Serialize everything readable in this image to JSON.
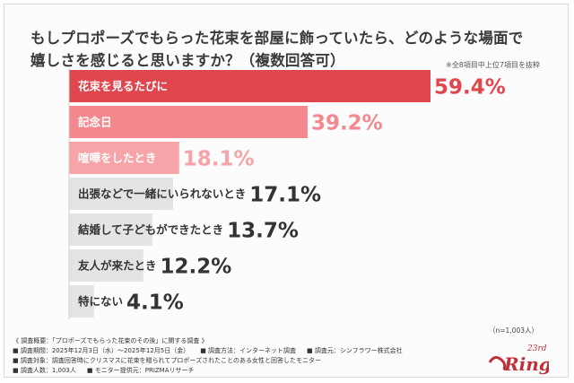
{
  "title_line1": "もしプロポーズでもらった花束を部屋に飾っていたら、どのような場面で",
  "title_line2": "嬉しさを感じると思いますか？（複数回答可）",
  "note": "※全8項目中上位7項目を抜粋",
  "n_count": "（n=1,003人）",
  "colors": {
    "top": "#e0464d",
    "second": "#f3888e",
    "third": "#f7a4a8",
    "rest": "#e4e4e4",
    "label_light": "#ffffff",
    "label_dark": "#333333"
  },
  "chart_data": {
    "type": "bar",
    "orientation": "horizontal",
    "categories": [
      "花束を見るたびに",
      "記念日",
      "喧嘩をしたとき",
      "出張などで一緒にいられないとき",
      "結婚して子どもができたとき",
      "友人が来たとき",
      "特にない"
    ],
    "values": [
      59.4,
      39.2,
      18.1,
      17.1,
      13.7,
      12.2,
      4.1
    ],
    "value_labels": [
      "59.4%",
      "39.2%",
      "18.1%",
      "17.1%",
      "13.7%",
      "12.2%",
      "4.1%"
    ],
    "unit": "%",
    "xlim": [
      0,
      70
    ],
    "grid": false,
    "legend": "none"
  },
  "footer": {
    "line1": "《 調査概要：「プロポーズでもらった花束のその後」に関する調査 》",
    "line2a": "■ 調査期間：2025年12月3日（水）～2025年12月5日（金）",
    "line2b": "■ 調査方法：インターネット調査",
    "line2c": "■ 調査元：シンフラワー株式会社",
    "line3": "■ 調査対象：調査回答時にクリスマスに花束を贈られてプロポーズされたことのある女性と回答したモニター",
    "line4a": "■ 調査人数：1,003人",
    "line4b": "■ モニター提供元：PRIZMAリサーチ"
  },
  "logo": {
    "badge": "23rd",
    "word": "Ring"
  }
}
